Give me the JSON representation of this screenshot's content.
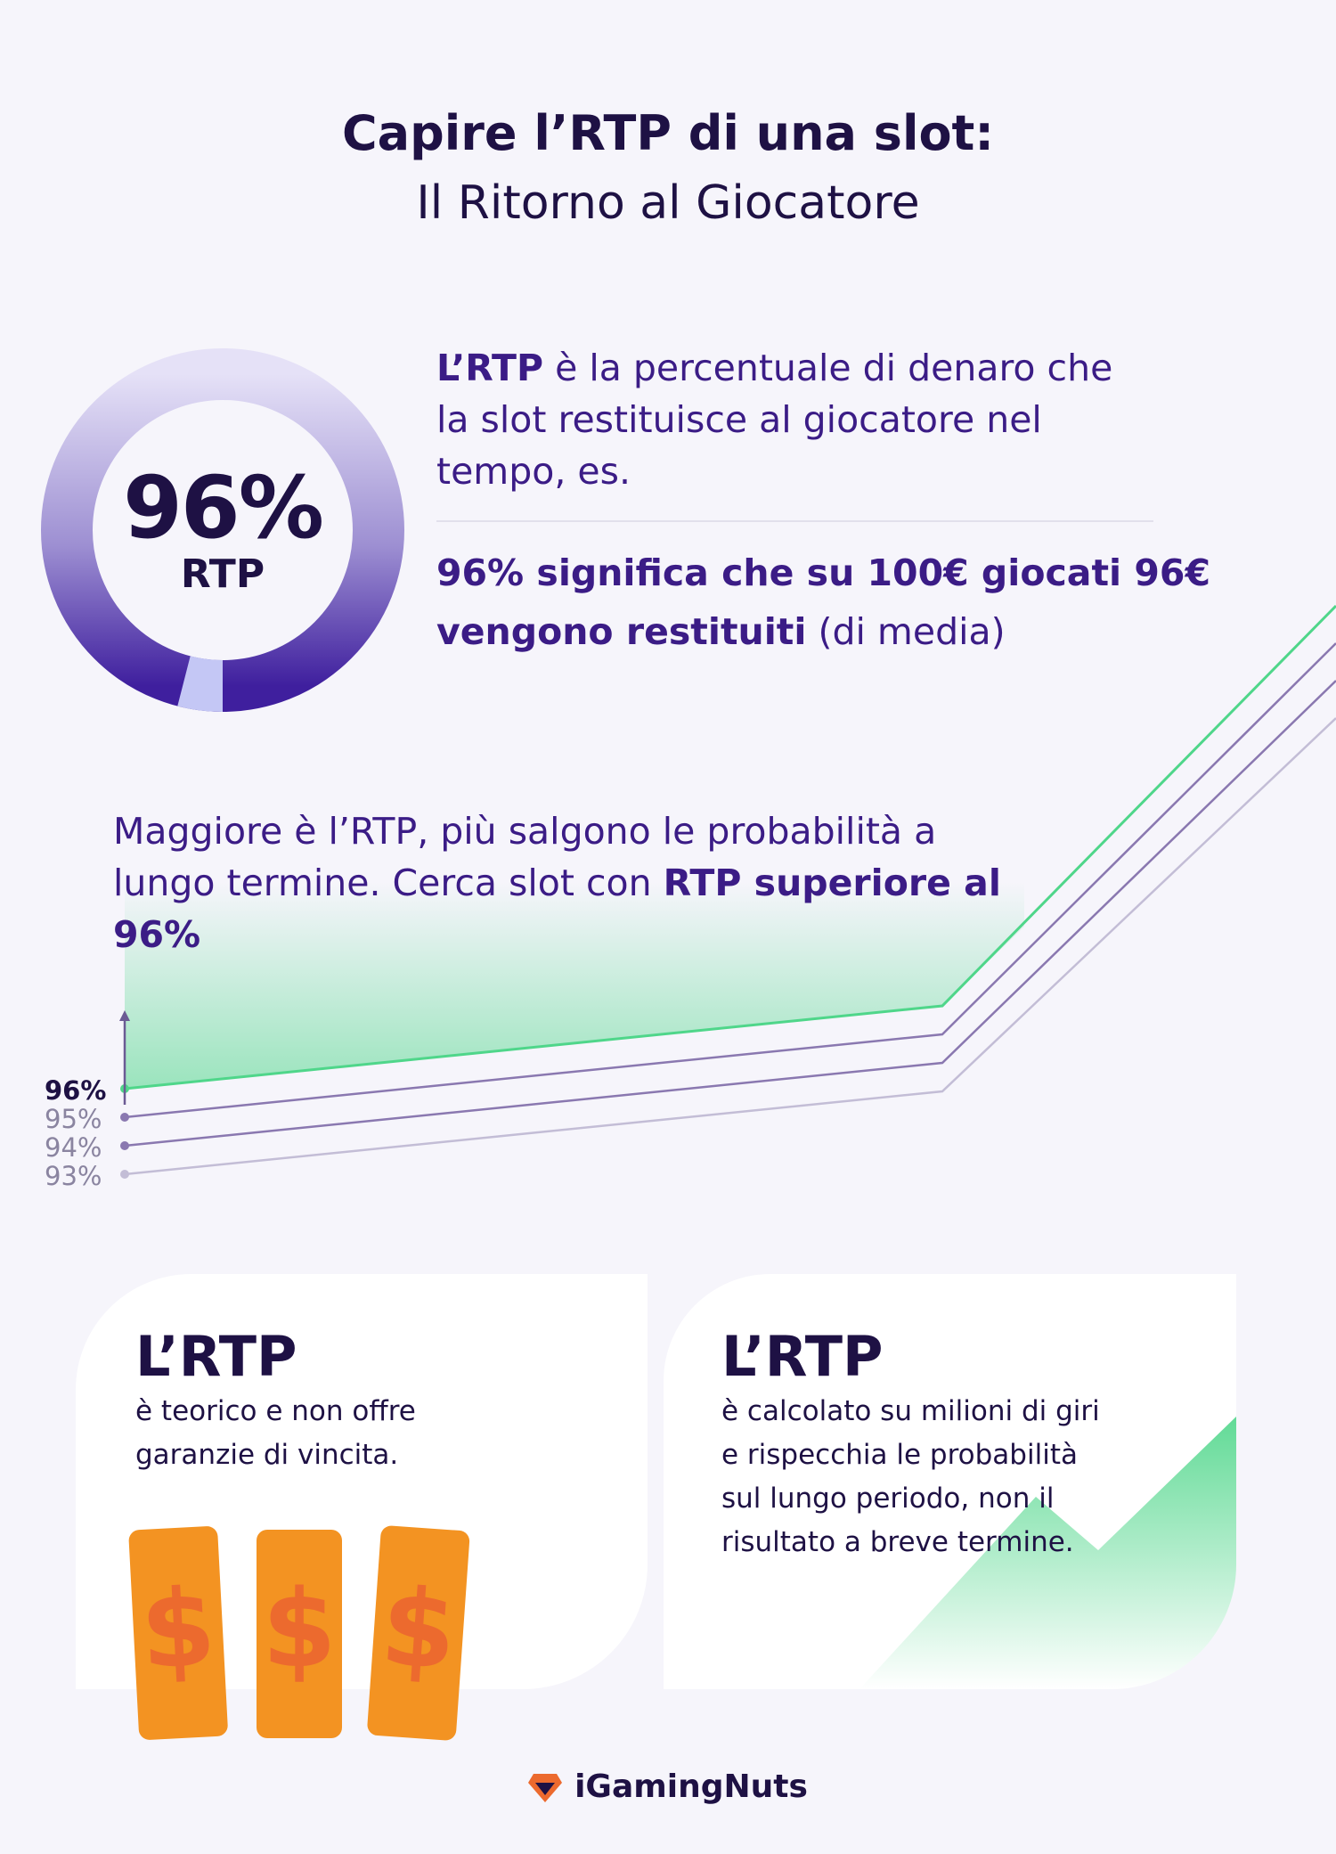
{
  "title": {
    "line1": "Capire l’RTP di una slot:",
    "line2": "Il Ritorno al Giocatore"
  },
  "donut": {
    "percent_label": "96%",
    "label": "RTP",
    "value": 0.96
  },
  "intro": {
    "bold": "L’RTP",
    "rest": " è la percentuale di denaro che la slot restituisce al giocatore nel tempo, es.",
    "meaning_bold": "96% significa che su 100€ giocati 96€ vengono restituiti",
    "meaning_rest": " (di media)"
  },
  "chart_text": {
    "plain": "Maggiore è l’RTP, più salgono le probabilità a lungo termine. Cerca slot con ",
    "bold": "RTP superiore al 96%"
  },
  "chart_data": {
    "type": "line",
    "series": [
      {
        "name": "96%",
        "color": "#4fd68a"
      },
      {
        "name": "95%",
        "color": "#8a78b0"
      },
      {
        "name": "94%",
        "color": "#8a78b0"
      },
      {
        "name": "93%",
        "color": "#c3bdd6"
      }
    ],
    "tick_labels": [
      "96%",
      "95%",
      "94%",
      "93%"
    ]
  },
  "cards": [
    {
      "title": "L’RTP",
      "text": "è teorico e non offre garanzie di vincita."
    },
    {
      "title": "L’RTP",
      "text": "è calcolato su milioni di giri e rispecchia le probabilità sul lungo periodo, non il risultato a breve termine."
    }
  ],
  "money": {
    "symbol": "$"
  },
  "footer": {
    "brand": "iGamingNuts"
  },
  "colors": {
    "dark": "#1e1144",
    "purple": "#3b1c86",
    "green": "#4fd68a",
    "orange": "#f39322",
    "orange_dark": "#ec6a2e"
  }
}
